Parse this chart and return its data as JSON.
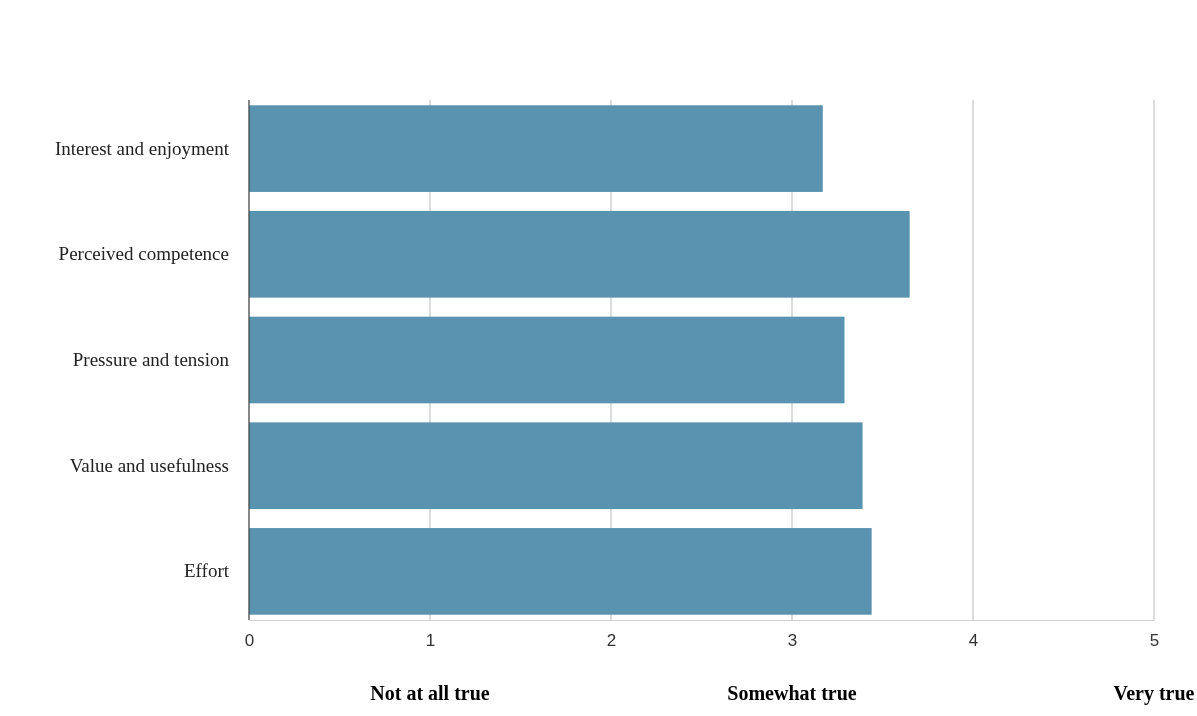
{
  "chart_data": {
    "type": "bar",
    "orientation": "horizontal",
    "categories": [
      "Interest and enjoyment",
      "Perceived competence",
      "Pressure and tension",
      "Value and usefulness",
      "Effort"
    ],
    "values": [
      3.17,
      3.65,
      3.29,
      3.39,
      3.44
    ],
    "color": "#5a93b0",
    "xlim": [
      0,
      5
    ],
    "xticks": [
      0,
      1,
      2,
      3,
      4,
      5
    ],
    "grid": "x",
    "annotations": [
      "Not at all true",
      "Somewhat true",
      "Very true"
    ]
  }
}
